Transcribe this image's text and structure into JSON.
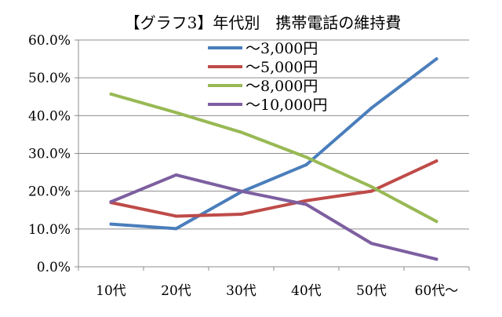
{
  "chart_data": {
    "type": "line",
    "title": "【グラフ3】年代別　携帯電話の維持費",
    "categories": [
      "10代",
      "20代",
      "30代",
      "40代",
      "50代",
      "60代〜"
    ],
    "y_tick_labels": [
      "0.0%",
      "10.0%",
      "20.0%",
      "30.0%",
      "40.0%",
      "50.0%",
      "60.0%"
    ],
    "ylim": [
      0,
      60
    ],
    "y_unit": "%",
    "grid": "horizontal",
    "legend_position": "top-right",
    "series": [
      {
        "name": "〜3,000円",
        "color": "#4a7ebb",
        "values": [
          11.3,
          10.1,
          19.8,
          27.0,
          42.0,
          55.0
        ]
      },
      {
        "name": "〜5,000円",
        "color": "#be4b48",
        "values": [
          17.0,
          13.4,
          13.9,
          17.5,
          20.0,
          28.0
        ]
      },
      {
        "name": "〜8,000円",
        "color": "#98b954",
        "values": [
          45.7,
          40.8,
          35.6,
          29.0,
          21.2,
          12.0
        ]
      },
      {
        "name": "〜10,000円",
        "color": "#7d5fa0",
        "values": [
          17.2,
          24.3,
          20.0,
          16.5,
          6.2,
          2.0
        ]
      }
    ]
  }
}
